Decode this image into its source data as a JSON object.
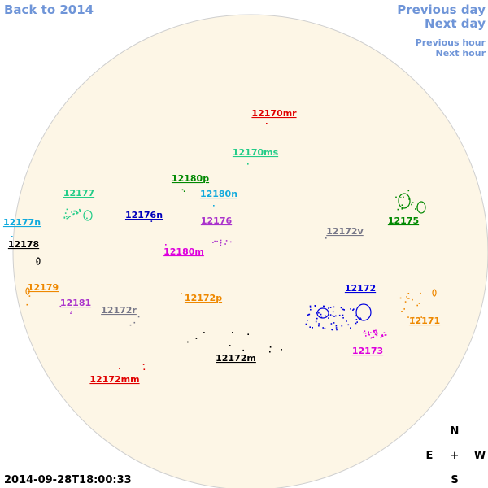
{
  "nav": {
    "back": "Back to 2014",
    "previous_day": "Previous day",
    "next_day": "Next day",
    "previous_hour": "Previous hour",
    "next_hour": "Next hour"
  },
  "timestamp": "2014-09-28T18:00:33",
  "compass": {
    "north": "N",
    "east": "E",
    "center": "+",
    "west": "W",
    "south": "S"
  },
  "regions": [
    {
      "label": "12170mr",
      "color": "#e00000"
    },
    {
      "label": "12170ms",
      "color": "#22cc88"
    },
    {
      "label": "12180p",
      "color": "#008800"
    },
    {
      "label": "12180n",
      "color": "#11aadd"
    },
    {
      "label": "12177",
      "color": "#22cc88"
    },
    {
      "label": "12177n",
      "color": "#11aadd"
    },
    {
      "label": "12176n",
      "color": "#0000bb"
    },
    {
      "label": "12176",
      "color": "#aa33cc"
    },
    {
      "label": "12175",
      "color": "#008800"
    },
    {
      "label": "12172v",
      "color": "#777788"
    },
    {
      "label": "12178",
      "color": "#000000"
    },
    {
      "label": "12180m",
      "color": "#dd00dd"
    },
    {
      "label": "12179",
      "color": "#ee8800"
    },
    {
      "label": "12181",
      "color": "#aa33cc"
    },
    {
      "label": "12172p",
      "color": "#ee8800"
    },
    {
      "label": "12172",
      "color": "#0000dd"
    },
    {
      "label": "12172r",
      "color": "#777788"
    },
    {
      "label": "12171",
      "color": "#ee8800"
    },
    {
      "label": "12173",
      "color": "#dd00dd"
    },
    {
      "label": "12172m",
      "color": "#000000"
    },
    {
      "label": "12172mm",
      "color": "#e00000"
    }
  ]
}
